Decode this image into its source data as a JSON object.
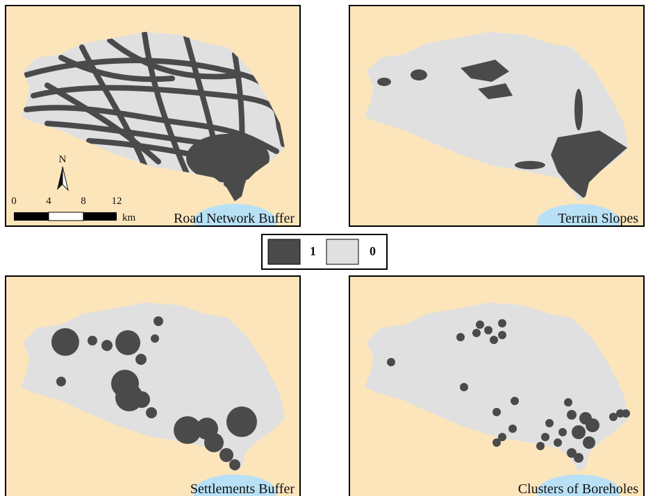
{
  "panels": [
    {
      "title": "Road Network Buffer"
    },
    {
      "title": "Terrain Slopes"
    },
    {
      "title": "Settlements Buffer"
    },
    {
      "title": "Clusters of Boreholes"
    }
  ],
  "scale_bar": {
    "labels": [
      "0",
      "4",
      "8",
      "12"
    ],
    "unit": "km"
  },
  "north_arrow": "N",
  "legend": [
    {
      "label": "1",
      "color": "#4a4a4a"
    },
    {
      "label": "0",
      "color": "#e0e0e0"
    }
  ]
}
